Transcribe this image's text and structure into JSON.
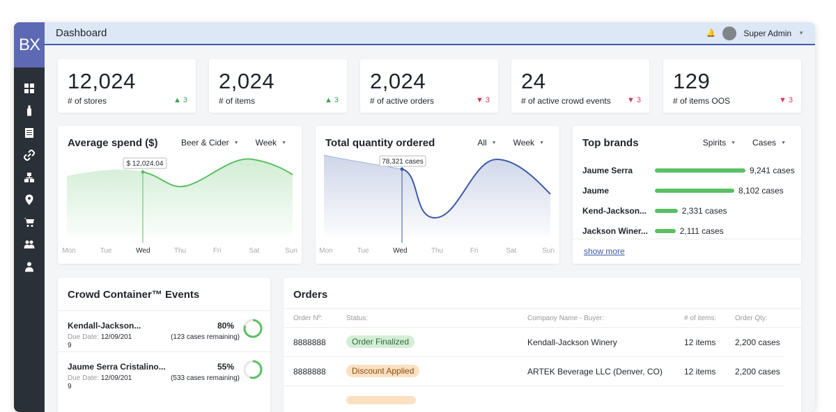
{
  "app": {
    "logo": "BX",
    "page_title": "Dashboard",
    "user_name": "Super Admin"
  },
  "nav": [
    "dashboard-icon",
    "bottle-icon",
    "document-icon",
    "link-icon",
    "hierarchy-icon",
    "location-pin-icon",
    "cart-icon",
    "users-icon",
    "user-badge-icon"
  ],
  "stats": [
    {
      "value": "12,024",
      "label": "# of stores",
      "delta": "▲ 3",
      "trend": "up"
    },
    {
      "value": "2,024",
      "label": "# of items",
      "delta": "▲ 3",
      "trend": "up"
    },
    {
      "value": "2,024",
      "label": "# of active orders",
      "delta": "▼ 3",
      "trend": "down"
    },
    {
      "value": "24",
      "label": "# of active crowd events",
      "delta": "▼ 3",
      "trend": "down"
    },
    {
      "value": "129",
      "label": "# of items OOS",
      "delta": "▼ 3",
      "trend": "down"
    }
  ],
  "avg_spend": {
    "title": "Average spend ($)",
    "filter_category": "Beer & Cider",
    "filter_period": "Week",
    "tooltip": "$ 12,024.04",
    "days": [
      "Mon",
      "Tue",
      "Wed",
      "Thu",
      "Fri",
      "Sat",
      "Sun"
    ],
    "active_day": "Wed",
    "color": "#5bbf64"
  },
  "total_qty": {
    "title": "Total quantity ordered",
    "filter_category": "All",
    "filter_period": "Week",
    "tooltip": "78,321 cases",
    "days": [
      "Mon",
      "Tue",
      "Wed",
      "Thu",
      "Fri",
      "Sat",
      "Sun"
    ],
    "active_day": "Wed",
    "color": "#3d5aa8"
  },
  "top_brands": {
    "title": "Top brands",
    "filter_category": "Spirits",
    "filter_unit": "Cases",
    "max": 9241,
    "items": [
      {
        "name": "Jaume Serra",
        "value": 9241,
        "label": "9,241 cases"
      },
      {
        "name": "Jaume",
        "value": 8102,
        "label": "8,102 cases"
      },
      {
        "name": "Kend-Jackson...",
        "value": 2331,
        "label": "2,331 cases"
      },
      {
        "name": "Jackson Winer...",
        "value": 2111,
        "label": "2,111 cases"
      }
    ],
    "show_more": "show more"
  },
  "crowd": {
    "title": "Crowd Container™ Events",
    "due_label": "Due Date:",
    "events": [
      {
        "name": "Kendall-Jackson...",
        "due": "12/09/201 9",
        "pct": "80%",
        "pct_value": 0.8,
        "remaining": "(123 cases remaining)"
      },
      {
        "name": "Jaume Serra Cristalino...",
        "due": "12/09/201 9",
        "pct": "55%",
        "pct_value": 0.55,
        "remaining": "(533 cases remaining)"
      }
    ]
  },
  "orders": {
    "title": "Orders",
    "columns": [
      "Order Nº:",
      "Status:",
      "Company Name - Buyer:",
      "# of items:",
      "Order Qty:"
    ],
    "rows": [
      {
        "order": "8888888",
        "status": "Order Finalized",
        "status_color": "green",
        "company": "Kendall-Jackson Winery",
        "items": "12 items",
        "qty": "2,200 cases"
      },
      {
        "order": "8888888",
        "status": "Discount Applied",
        "status_color": "orange",
        "company": "ARTEK Beverage LLC (Denver, CO)",
        "items": "12 items",
        "qty": "2,200 cases"
      }
    ]
  }
}
